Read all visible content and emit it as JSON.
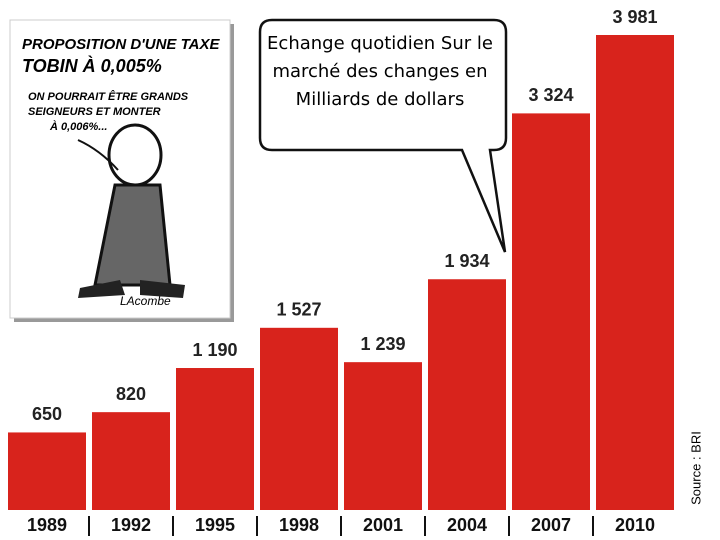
{
  "chart_data": {
    "type": "bar",
    "title": "Echange quotidien Sur le marché des changes en Milliards de dollars",
    "categories": [
      "1989",
      "1992",
      "1995",
      "1998",
      "2001",
      "2004",
      "2007",
      "2010"
    ],
    "values": [
      650,
      820,
      1190,
      1527,
      1239,
      1934,
      3324,
      3981
    ],
    "value_labels": [
      "650",
      "820",
      "1 190",
      "1 527",
      "1 239",
      "1 934",
      "3 324",
      "3 981"
    ],
    "color": "#d8231c",
    "source": "Source : BRI",
    "annotations": [
      "PROPOSITION D'UNE TAXE",
      "TOBIN À 0,005%",
      "ON POURRAIT ÊTRE GRANDS",
      "SEIGNEURS ET MONTER",
      "À 0,006%...",
      "LAcombe"
    ]
  }
}
